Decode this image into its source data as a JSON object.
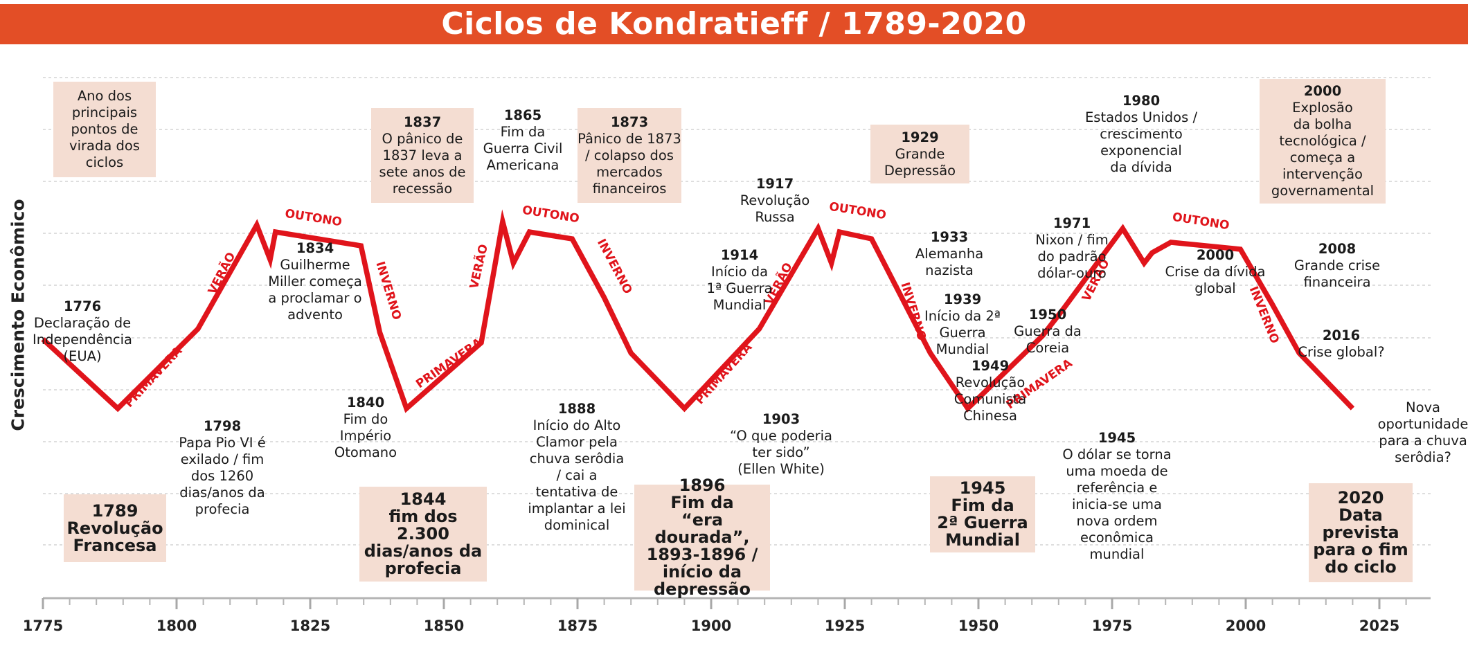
{
  "title": "Ciclos de Kondratieff / 1789-2020",
  "chart_data": {
    "type": "line",
    "title": "Ciclos de Kondratieff / 1789-2020",
    "xlabel": "",
    "ylabel": "Crescimento Econômico",
    "xlim": [
      1775,
      2028
    ],
    "ylim": [
      0,
      10
    ],
    "x_ticks": [
      1775,
      1800,
      1825,
      1850,
      1875,
      1900,
      1925,
      1950,
      1975,
      2000,
      2025
    ],
    "grid": "horizontal-dashed",
    "line_color": "#e0141b",
    "series": [
      {
        "name": "",
        "x": [
          1775,
          1789,
          1804,
          1815,
          1817.5,
          1818.5,
          1834.5,
          1838,
          1843,
          1857,
          1861,
          1863,
          1866,
          1874,
          1880,
          1885,
          1895,
          1909,
          1920,
          1922.5,
          1924,
          1930,
          1937,
          1941,
          1948,
          1962,
          1966,
          1977,
          1981,
          1982.5,
          1986,
          1999,
          2005,
          2010,
          2020
        ],
        "y": [
          3.6,
          1.6,
          3.9,
          6.9,
          5.9,
          6.7,
          6.3,
          3.8,
          1.6,
          3.5,
          7.0,
          5.8,
          6.7,
          6.5,
          4.8,
          3.2,
          1.6,
          3.9,
          6.8,
          5.8,
          6.7,
          6.5,
          4.4,
          3.2,
          1.6,
          3.7,
          4.5,
          6.8,
          5.8,
          6.1,
          6.4,
          6.2,
          4.6,
          3.2,
          1.6
        ]
      }
    ],
    "season_labels": [
      {
        "text": "PRIMAVERA",
        "x": 1795.7,
        "y": 2.5,
        "angle": -47
      },
      {
        "text": "VERÃO",
        "x": 1808.5,
        "y": 5.5,
        "angle": -63
      },
      {
        "text": "OUTONO",
        "x": 1825.6,
        "y": 7.1,
        "angle": 9
      },
      {
        "text": "INVERNO",
        "x": 1839.6,
        "y": 5.0,
        "angle": 73
      },
      {
        "text": "PRIMAVERA",
        "x": 1851,
        "y": 2.9,
        "angle": -35
      },
      {
        "text": "VERÃO",
        "x": 1856.6,
        "y": 5.7,
        "angle": -77
      },
      {
        "text": "OUTONO",
        "x": 1870,
        "y": 7.2,
        "angle": 9
      },
      {
        "text": "INVERNO",
        "x": 1881.9,
        "y": 5.7,
        "angle": 62
      },
      {
        "text": "PRIMAVERA",
        "x": 1902.4,
        "y": 2.6,
        "angle": -48
      },
      {
        "text": "VERÃO",
        "x": 1912.7,
        "y": 5.2,
        "angle": -63
      },
      {
        "text": "OUTONO",
        "x": 1927.4,
        "y": 7.3,
        "angle": 9
      },
      {
        "text": "INVERNO",
        "x": 1937.8,
        "y": 4.4,
        "angle": 73
      },
      {
        "text": "PRIMAVERA",
        "x": 1961.4,
        "y": 2.3,
        "angle": -35
      },
      {
        "text": "VERÃO",
        "x": 1972,
        "y": 5.3,
        "angle": -63
      },
      {
        "text": "OUTONO",
        "x": 1991.6,
        "y": 7.0,
        "angle": 9
      },
      {
        "text": "INVERNO",
        "x": 2003.4,
        "y": 4.3,
        "angle": 68
      }
    ]
  },
  "annotations": [
    {
      "id": "legend",
      "year": "",
      "text": "Ano dos\nprincipais\npontos de\nvirada dos\nciclos",
      "boxed": true,
      "big": false
    },
    {
      "id": "1776",
      "year": "1776",
      "text": "Declaração de\nIndependência\n(EUA)",
      "boxed": false,
      "big": false
    },
    {
      "id": "1789",
      "year": "1789",
      "text": "Revolução\nFrancesa",
      "boxed": true,
      "big": true
    },
    {
      "id": "1798",
      "year": "1798",
      "text": "Papa Pio VI é\nexilado / fim\ndos 1260\ndias/anos da\nprofecia",
      "boxed": false,
      "big": false
    },
    {
      "id": "1834",
      "year": "1834",
      "text": "Guilherme\nMiller começa\na proclamar o\nadvento",
      "boxed": false,
      "big": false
    },
    {
      "id": "1837",
      "year": "1837",
      "text": "O pânico de\n1837 leva a\nsete anos de\nrecessão",
      "boxed": true,
      "big": false
    },
    {
      "id": "1840",
      "year": "1840",
      "text": "Fim do\nImpério\nOtomano",
      "boxed": false,
      "big": false
    },
    {
      "id": "1844",
      "year": "1844",
      "text": "fim dos\n2.300\ndias/anos da\nprofecia",
      "boxed": true,
      "big": true
    },
    {
      "id": "1865",
      "year": "1865",
      "text": "Fim da\nGuerra Civil\nAmericana",
      "boxed": false,
      "big": false
    },
    {
      "id": "1873",
      "year": "1873",
      "text": "Pânico de 1873\n/ colapso dos\nmercados\nfinanceiros",
      "boxed": true,
      "big": false
    },
    {
      "id": "1888",
      "year": "1888",
      "text": "Início do Alto\nClamor pela\nchuva serôdia\n/ cai a\ntentativa de\nimplantar a lei\ndominical",
      "boxed": false,
      "big": false
    },
    {
      "id": "1896",
      "year": "1896",
      "text": "Fim da\n“era dourada”,\n1893-1896 /\ninício da\ndepressão",
      "boxed": true,
      "big": true
    },
    {
      "id": "1903",
      "year": "1903",
      "text": "“O que poderia\nter sido”\n(Ellen White)",
      "boxed": false,
      "big": false
    },
    {
      "id": "1914",
      "year": "1914",
      "text": "Início da\n1ª Guerra\nMundial",
      "boxed": false,
      "big": false
    },
    {
      "id": "1917",
      "year": "1917",
      "text": "Revolução\nRussa",
      "boxed": false,
      "big": false
    },
    {
      "id": "1929",
      "year": "1929",
      "text": "Grande\nDepressão",
      "boxed": true,
      "big": false
    },
    {
      "id": "1933",
      "year": "1933",
      "text": "Alemanha\nnazista",
      "boxed": false,
      "big": false
    },
    {
      "id": "1939",
      "year": "1939",
      "text": "Início da 2ª\nGuerra\nMundial",
      "boxed": false,
      "big": false
    },
    {
      "id": "1949",
      "year": "1949",
      "text": "Revolução\nComunista\nChinesa",
      "boxed": false,
      "big": false
    },
    {
      "id": "1945box",
      "year": "1945",
      "text": "Fim da\n2ª Guerra\nMundial",
      "boxed": true,
      "big": true
    },
    {
      "id": "1945",
      "year": "1945",
      "text": "O dólar se torna\numa moeda de\nreferência e\ninicia-se uma\nnova ordem\neconômica\nmundial",
      "boxed": false,
      "big": false
    },
    {
      "id": "1950",
      "year": "1950",
      "text": "Guerra da\nCoreia",
      "boxed": false,
      "big": false
    },
    {
      "id": "1971",
      "year": "1971",
      "text": "Nixon / fim\ndo padrão\ndólar-ouro",
      "boxed": false,
      "big": false
    },
    {
      "id": "1980",
      "year": "1980",
      "text": "Estados Unidos /\ncrescimento\nexponencial\nda dívida",
      "boxed": false,
      "big": false
    },
    {
      "id": "2000a",
      "year": "2000",
      "text": "Explosão\nda bolha\ntecnológica /\ncomeça a\nintervenção\ngovernamental",
      "boxed": true,
      "big": false
    },
    {
      "id": "2000b",
      "year": "2000",
      "text": "Crise da dívida\nglobal",
      "boxed": false,
      "big": false
    },
    {
      "id": "2008",
      "year": "2008",
      "text": "Grande crise\nfinanceira",
      "boxed": false,
      "big": false
    },
    {
      "id": "2016",
      "year": "2016",
      "text": "Crise global?",
      "boxed": false,
      "big": false
    },
    {
      "id": "nova",
      "year": "",
      "text": "Nova\noportunidade\npara a chuva\nserôdia?",
      "boxed": false,
      "big": false
    },
    {
      "id": "2020",
      "year": "2020",
      "text": "Data\nprevista\npara o fim\ndo ciclo",
      "boxed": true,
      "big": true
    }
  ]
}
